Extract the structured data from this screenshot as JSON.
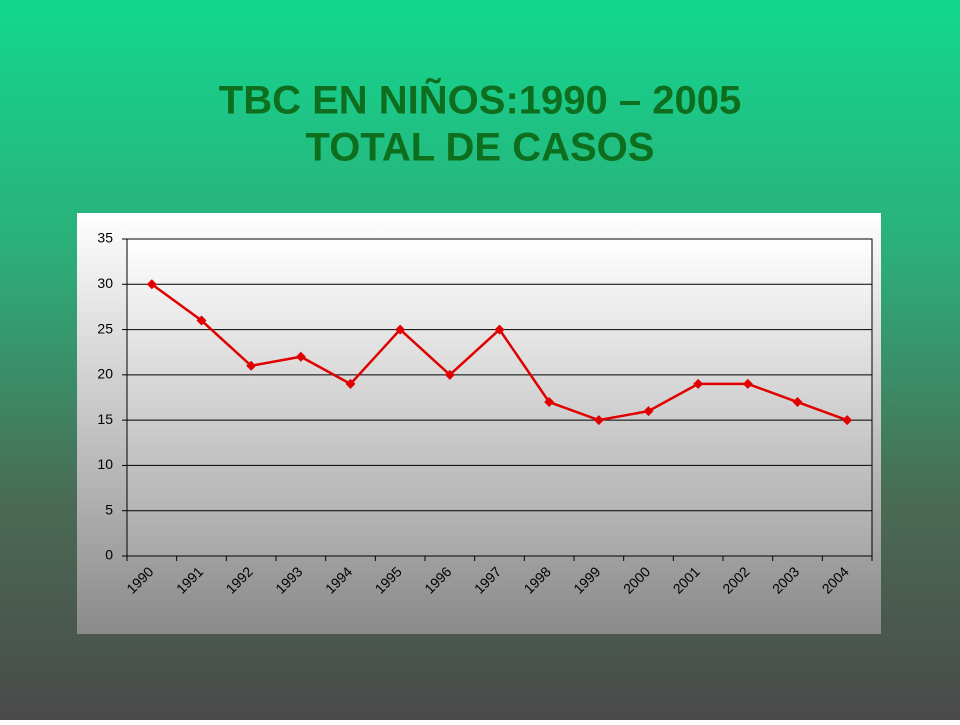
{
  "chart_data": {
    "type": "line",
    "title": "TBC EN NIÑOS:1990 – 2005",
    "subtitle": "TOTAL DE CASOS",
    "categories": [
      "1990",
      "1991",
      "1992",
      "1993",
      "1994",
      "1995",
      "1996",
      "1997",
      "1998",
      "1999",
      "2000",
      "2001",
      "2002",
      "2003",
      "2004"
    ],
    "values": [
      30,
      26,
      21,
      22,
      19,
      25,
      20,
      25,
      17,
      15,
      16,
      19,
      19,
      17,
      15
    ],
    "color": "#e00000",
    "marker": "diamond",
    "ylim": [
      0,
      35
    ],
    "yticks": [
      0,
      5,
      10,
      15,
      20,
      25,
      30,
      35
    ],
    "grid": true
  }
}
